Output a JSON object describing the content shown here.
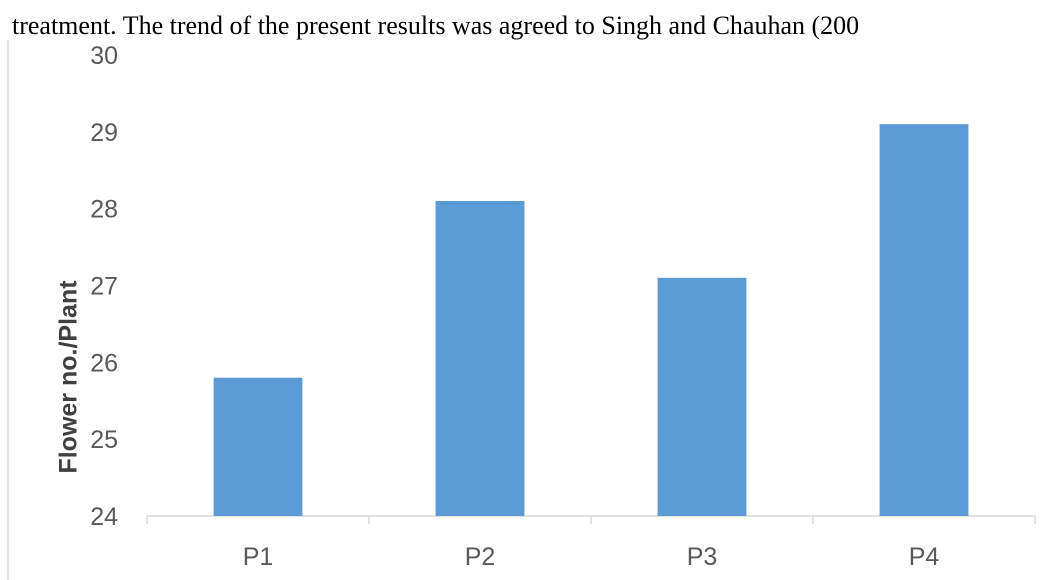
{
  "page_text": "treatment. The trend of the present results was agreed to Singh and Chauhan (200",
  "chart_data": {
    "type": "bar",
    "y_label": "Flower no./Plant",
    "categories": [
      "P1",
      "P2",
      "P3",
      "P4"
    ],
    "values": [
      25.8,
      28.1,
      27.1,
      29.1
    ],
    "color": "#5b9bd5",
    "ylim": [
      24,
      30
    ],
    "yticks": [
      24,
      25,
      26,
      27,
      28,
      29,
      30
    ],
    "grid": false
  }
}
